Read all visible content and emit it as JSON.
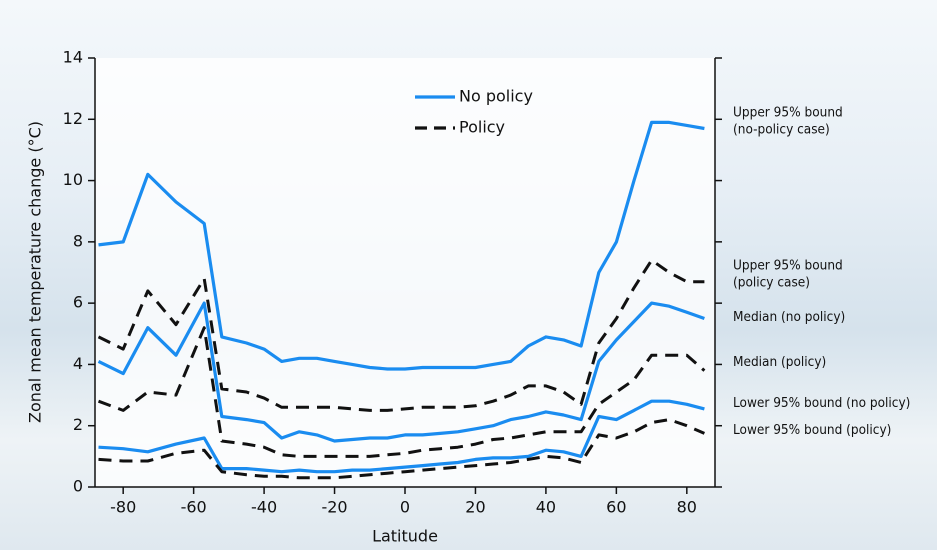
{
  "chart_data": {
    "type": "line",
    "x_label": "Latitude",
    "y_label": "Zonal mean temperature change (°C)",
    "x": [
      -87,
      -80,
      -73,
      -65,
      -57,
      -52,
      -45,
      -40,
      -35,
      -30,
      -25,
      -20,
      -15,
      -10,
      -5,
      0,
      5,
      10,
      15,
      20,
      25,
      30,
      35,
      40,
      45,
      50,
      55,
      60,
      65,
      70,
      75,
      80,
      85
    ],
    "xlim": [
      -88,
      88
    ],
    "xticks": [
      -80,
      -60,
      -40,
      -20,
      0,
      20,
      40,
      60,
      80
    ],
    "ylim": [
      0,
      14
    ],
    "yticks": [
      0,
      2,
      4,
      6,
      8,
      10,
      12,
      14
    ],
    "legend": [
      {
        "label": "No policy",
        "color": "#1a8cf0",
        "dashed": false
      },
      {
        "label": "Policy",
        "color": "#111111",
        "dashed": true
      }
    ],
    "series": [
      {
        "name": [
          "Upper 95% bound",
          "(no-policy case)"
        ],
        "color": "#1a8cf0",
        "dashed": false,
        "values": [
          7.9,
          8.0,
          10.2,
          9.3,
          8.6,
          4.9,
          4.7,
          4.5,
          4.1,
          4.2,
          4.2,
          4.1,
          4.0,
          3.9,
          3.85,
          3.85,
          3.9,
          3.9,
          3.9,
          3.9,
          4.0,
          4.1,
          4.6,
          4.9,
          4.8,
          4.6,
          7.0,
          8.0,
          10.0,
          11.9,
          11.9,
          11.8,
          11.7
        ]
      },
      {
        "name": [
          "Upper 95% bound",
          "(policy case)"
        ],
        "color": "#111111",
        "dashed": true,
        "values": [
          4.9,
          4.5,
          6.4,
          5.3,
          6.8,
          3.2,
          3.1,
          2.9,
          2.6,
          2.6,
          2.6,
          2.6,
          2.55,
          2.5,
          2.5,
          2.55,
          2.6,
          2.6,
          2.6,
          2.65,
          2.8,
          3.0,
          3.3,
          3.3,
          3.1,
          2.7,
          4.7,
          5.5,
          6.5,
          7.4,
          7.0,
          6.7,
          6.7
        ]
      },
      {
        "name": [
          "Median (no policy)"
        ],
        "color": "#1a8cf0",
        "dashed": false,
        "values": [
          4.1,
          3.7,
          5.2,
          4.3,
          6.0,
          2.3,
          2.2,
          2.1,
          1.6,
          1.8,
          1.7,
          1.5,
          1.55,
          1.6,
          1.6,
          1.7,
          1.7,
          1.75,
          1.8,
          1.9,
          2.0,
          2.2,
          2.3,
          2.45,
          2.35,
          2.2,
          4.1,
          4.8,
          5.4,
          6.0,
          5.9,
          5.7,
          5.5
        ]
      },
      {
        "name": [
          "Median (policy)"
        ],
        "color": "#111111",
        "dashed": true,
        "values": [
          2.8,
          2.5,
          3.1,
          3.0,
          5.2,
          1.5,
          1.4,
          1.3,
          1.05,
          1.0,
          1.0,
          1.0,
          1.0,
          1.0,
          1.05,
          1.1,
          1.2,
          1.25,
          1.3,
          1.4,
          1.55,
          1.6,
          1.7,
          1.8,
          1.8,
          1.8,
          2.7,
          3.1,
          3.5,
          4.3,
          4.3,
          4.3,
          3.8
        ]
      },
      {
        "name": [
          "Lower 95% bound (no policy)"
        ],
        "color": "#1a8cf0",
        "dashed": false,
        "values": [
          1.3,
          1.25,
          1.15,
          1.4,
          1.6,
          0.6,
          0.6,
          0.55,
          0.5,
          0.55,
          0.5,
          0.5,
          0.55,
          0.55,
          0.6,
          0.65,
          0.7,
          0.75,
          0.8,
          0.9,
          0.95,
          0.95,
          1.0,
          1.2,
          1.15,
          1.0,
          2.3,
          2.2,
          2.5,
          2.8,
          2.8,
          2.7,
          2.55
        ]
      },
      {
        "name": [
          "Lower 95% bound (policy)"
        ],
        "color": "#111111",
        "dashed": true,
        "values": [
          0.9,
          0.85,
          0.85,
          1.1,
          1.2,
          0.5,
          0.4,
          0.35,
          0.35,
          0.3,
          0.3,
          0.3,
          0.35,
          0.4,
          0.45,
          0.5,
          0.55,
          0.6,
          0.65,
          0.7,
          0.75,
          0.8,
          0.9,
          1.0,
          0.95,
          0.8,
          1.7,
          1.6,
          1.8,
          2.1,
          2.2,
          2.0,
          1.75
        ]
      }
    ]
  }
}
